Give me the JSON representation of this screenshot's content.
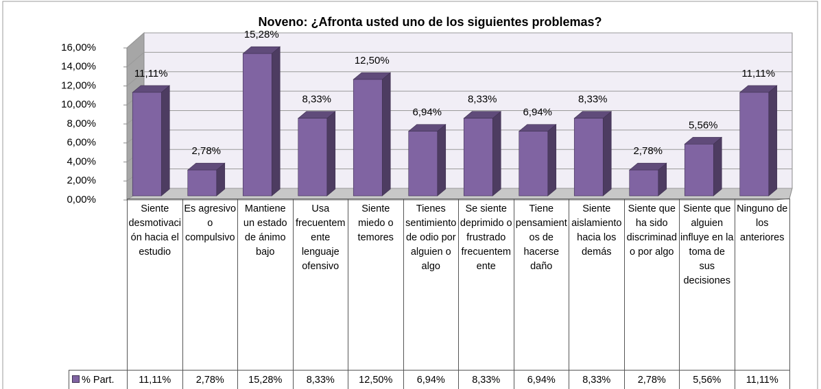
{
  "chart_data": {
    "type": "bar3d",
    "title": "Noveno: ¿Afronta usted uno de los siguientes problemas?",
    "categories": [
      "Siente desmotivación hacia el estudio",
      "Es agresivo o compulsivo",
      "Mantiene un estado de ánimo bajo",
      "Usa frecuentemente lenguaje ofensivo",
      "Siente miedo o temores",
      "Tienes sentimiento de odio por alguien o algo",
      "Se siente deprimido o frustrado frecuentemente",
      "Tiene pensamientos de hacerse daño",
      "Siente aislamiento hacia los demás",
      "Siente que ha sido discriminado por algo",
      "Siente que alguien influye en la toma de sus decisiones",
      "Ninguno de los anteriores"
    ],
    "series": [
      {
        "name": "% Part.",
        "color": "#8064a2",
        "values": [
          11.11,
          2.78,
          15.28,
          8.33,
          12.5,
          6.94,
          8.33,
          6.94,
          8.33,
          2.78,
          5.56,
          11.11
        ],
        "value_labels": [
          "11,11%",
          "2,78%",
          "15,28%",
          "8,33%",
          "12,50%",
          "6,94%",
          "8,33%",
          "6,94%",
          "8,33%",
          "2,78%",
          "5,56%",
          "11,11%"
        ]
      }
    ],
    "ylim": [
      0,
      16
    ],
    "yticks": [
      {
        "value": 0,
        "label": "0,00%"
      },
      {
        "value": 2,
        "label": "2,00%"
      },
      {
        "value": 4,
        "label": "4,00%"
      },
      {
        "value": 6,
        "label": "6,00%"
      },
      {
        "value": 8,
        "label": "8,00%"
      },
      {
        "value": 10,
        "label": "10,00%"
      },
      {
        "value": 12,
        "label": "12,00%"
      },
      {
        "value": 14,
        "label": "14,00%"
      },
      {
        "value": 16,
        "label": "16,00%"
      }
    ],
    "grid": true,
    "legend": "data-table"
  }
}
